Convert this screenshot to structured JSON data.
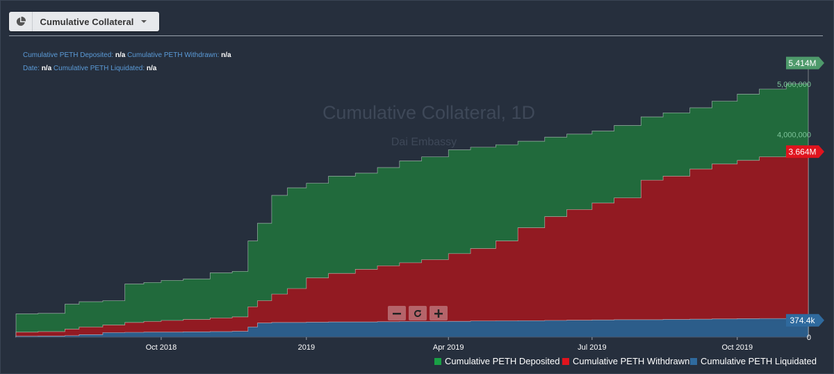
{
  "selector": {
    "label": "Cumulative Collateral",
    "icon": "pie-chart-icon"
  },
  "info": {
    "deposited_label": "Cumulative PETH Deposited:",
    "deposited_value": "n/a",
    "withdrawn_label": "Cumulative PETH Withdrawn:",
    "withdrawn_value": "n/a",
    "date_label": "Date:",
    "date_value": "n/a",
    "liquidated_label": "Cumulative PETH Liquidated:",
    "liquidated_value": "n/a"
  },
  "watermark": {
    "title": "Cumulative Collateral, 1D",
    "subtitle": "Dai Embassy"
  },
  "badges": {
    "deposited": "5.414M",
    "withdrawn": "3.664M",
    "liquidated": "374.4k"
  },
  "zoom": {
    "minus": "minus-icon",
    "reset": "reset-icon",
    "plus": "plus-icon"
  },
  "colors": {
    "background": "#262f3d",
    "deposited": "#216a3c",
    "withdrawn": "#921a22",
    "liquidated": "#2c5d8a",
    "deposited_badge": "#4e9a6b",
    "withdrawn_badge": "#e0141e",
    "liquidated_badge": "#2f6a9e"
  },
  "chart_data": {
    "type": "area",
    "title": "Cumulative Collateral, 1D",
    "subtitle": "Dai Embassy",
    "x_ticks": [
      "Oct 2018",
      "2019",
      "Apr 2019",
      "Jul 2019",
      "Oct 2019"
    ],
    "y_ticks": [
      "0",
      "4,000,000",
      "5,000,000"
    ],
    "ylim": [
      0,
      5450000
    ],
    "x": [
      "2018-07-01",
      "2018-07-15",
      "2018-08-01",
      "2018-08-10",
      "2018-08-25",
      "2018-09-08",
      "2018-09-20",
      "2018-10-01",
      "2018-10-15",
      "2018-11-01",
      "2018-11-15",
      "2018-11-25",
      "2018-12-01",
      "2018-12-10",
      "2018-12-20",
      "2019-01-01",
      "2019-01-15",
      "2019-02-01",
      "2019-02-15",
      "2019-03-01",
      "2019-03-15",
      "2019-04-01",
      "2019-04-15",
      "2019-05-01",
      "2019-05-15",
      "2019-06-01",
      "2019-06-15",
      "2019-07-01",
      "2019-07-15",
      "2019-08-01",
      "2019-08-15",
      "2019-09-01",
      "2019-09-15",
      "2019-10-01",
      "2019-10-15",
      "2019-11-01",
      "2019-11-15"
    ],
    "series": [
      {
        "name": "Cumulative PETH Deposited",
        "values": [
          460000,
          470000,
          650000,
          700000,
          720000,
          1050000,
          1080000,
          1120000,
          1150000,
          1270000,
          1300000,
          1900000,
          2250000,
          2800000,
          2950000,
          3040000,
          3180000,
          3240000,
          3350000,
          3480000,
          3560000,
          3700000,
          3750000,
          3800000,
          3870000,
          3950000,
          4010000,
          4070000,
          4180000,
          4350000,
          4430000,
          4530000,
          4660000,
          4800000,
          4900000,
          5000000,
          5414000
        ]
      },
      {
        "name": "Cumulative PETH Withdrawn",
        "values": [
          100000,
          110000,
          160000,
          200000,
          240000,
          290000,
          310000,
          330000,
          350000,
          380000,
          400000,
          600000,
          720000,
          850000,
          960000,
          1170000,
          1260000,
          1340000,
          1410000,
          1470000,
          1530000,
          1650000,
          1750000,
          1900000,
          2160000,
          2380000,
          2520000,
          2650000,
          2750000,
          3100000,
          3180000,
          3320000,
          3420000,
          3490000,
          3560000,
          3610000,
          3664000
        ]
      },
      {
        "name": "Cumulative PETH Liquidated",
        "values": [
          20000,
          22000,
          30000,
          50000,
          90000,
          95000,
          100000,
          100000,
          105000,
          110000,
          115000,
          200000,
          280000,
          290000,
          290000,
          295000,
          300000,
          300000,
          305000,
          310000,
          310000,
          312000,
          320000,
          322000,
          325000,
          330000,
          335000,
          340000,
          345000,
          345000,
          350000,
          355000,
          360000,
          365000,
          368000,
          370000,
          374400
        ]
      }
    ],
    "grid": false,
    "legend_position": "bottom-right"
  }
}
